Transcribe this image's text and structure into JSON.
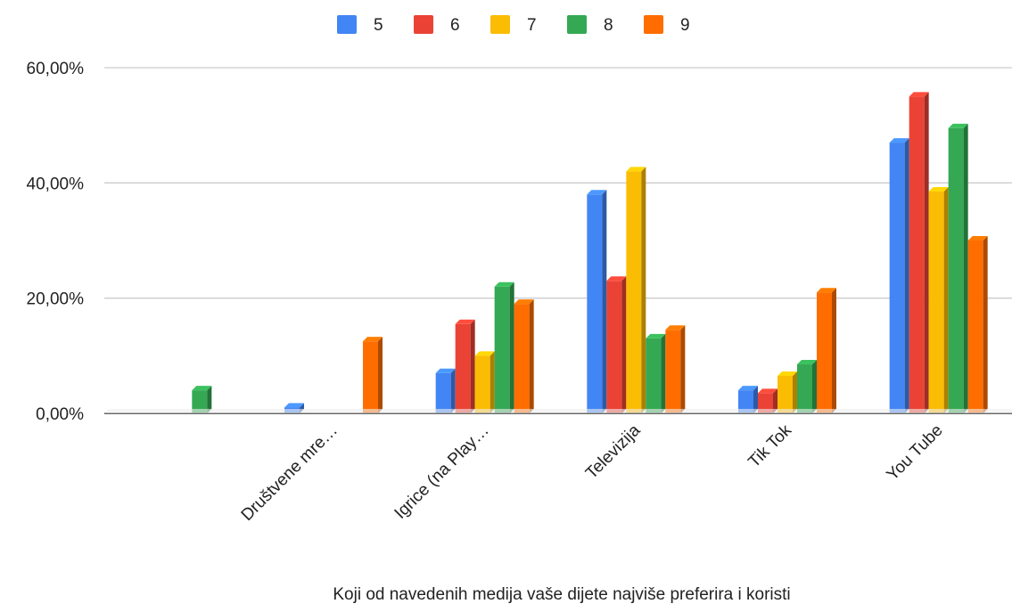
{
  "chart_data": {
    "type": "bar",
    "style": "3d-clustered",
    "categories": [
      "",
      "Društvene mre…",
      "Igrice (na Play…",
      "Televizija",
      "Tik Tok",
      "You Tube"
    ],
    "series": [
      {
        "name": "5",
        "color": "#4285F4",
        "values": [
          0,
          1,
          7,
          38,
          4,
          47
        ]
      },
      {
        "name": "6",
        "color": "#EA4335",
        "values": [
          0,
          0,
          15.5,
          23,
          3.5,
          55
        ]
      },
      {
        "name": "7",
        "color": "#FBBC04",
        "values": [
          0,
          0,
          10,
          42,
          6.5,
          38.5
        ]
      },
      {
        "name": "8",
        "color": "#34A853",
        "values": [
          4,
          0,
          22,
          13,
          8.5,
          49.5
        ]
      },
      {
        "name": "9",
        "color": "#FF6D01",
        "values": [
          0,
          12.5,
          19,
          14.5,
          21,
          30
        ]
      }
    ],
    "y_ticks": [
      "0,00%",
      "20,00%",
      "40,00%",
      "60,00%"
    ],
    "ylim": [
      0,
      60
    ],
    "xlabel": "Koji od navedenih medija vaše dijete najviše preferira i koristi",
    "ylabel": "",
    "title": "",
    "legend_position": "top",
    "grid": true
  }
}
